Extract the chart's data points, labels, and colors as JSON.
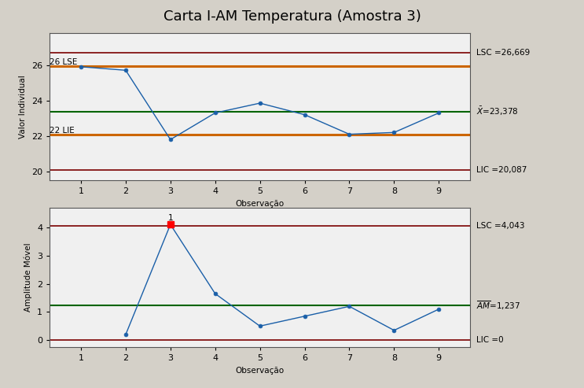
{
  "title": "Carta I-AM Temperatura (Amostra 3)",
  "background_color": "#d4d0c8",
  "plot_bg_color": "#f0f0f0",
  "top_chart": {
    "x": [
      1,
      2,
      3,
      4,
      5,
      6,
      7,
      8,
      9
    ],
    "y": [
      25.9,
      25.7,
      21.8,
      23.3,
      23.85,
      23.2,
      22.1,
      22.2,
      23.3
    ],
    "xlabel": "Observação",
    "ylabel": "Valor Individual",
    "ylim": [
      19.5,
      27.8
    ],
    "yticks": [
      20,
      22,
      24,
      26
    ],
    "lsc": 26.669,
    "mean": 23.378,
    "lic": 20.087,
    "lse": 25.94,
    "lie": 22.087,
    "lsc_color": "#7b0000",
    "mean_color": "#006400",
    "lic_color": "#7b0000",
    "lse_color": "#cc6600",
    "lie_color": "#cc6600",
    "line_color": "#1a5fa8",
    "marker": "o",
    "marker_size": 3.5,
    "lsc_label": "LSC =26,669",
    "mean_label": "Ẋ=23,378",
    "lic_label": "LIC =20,087",
    "lse_ylabel": "26 LSE",
    "lie_ylabel": "22 LIE"
  },
  "bottom_chart": {
    "x": [
      2,
      3,
      4,
      5,
      6,
      7,
      8,
      9
    ],
    "y": [
      0.2,
      4.1,
      1.65,
      0.5,
      0.85,
      1.2,
      0.35,
      1.1
    ],
    "outlier_x": [
      3
    ],
    "outlier_y": [
      4.1
    ],
    "outlier_label": "1",
    "xlabel": "Observação",
    "ylabel": "Amplitude Móvel",
    "ylim": [
      -0.25,
      4.7
    ],
    "yticks": [
      0,
      1,
      2,
      3,
      4
    ],
    "lsc": 4.043,
    "mean": 1.237,
    "lic": 0,
    "lsc_color": "#7b0000",
    "mean_color": "#006400",
    "lic_color": "#7b0000",
    "line_color": "#1a5fa8",
    "marker": "o",
    "marker_size": 3.5,
    "lsc_label": "LSC =4,043",
    "mean_label": "ĀM =1,237",
    "lic_label": "LIC =0",
    "xall": [
      1,
      2,
      3,
      4,
      5,
      6,
      7,
      8,
      9
    ]
  },
  "label_fontsize": 7.5,
  "tick_fontsize": 8,
  "title_fontsize": 13,
  "annot_fontsize": 7.5
}
